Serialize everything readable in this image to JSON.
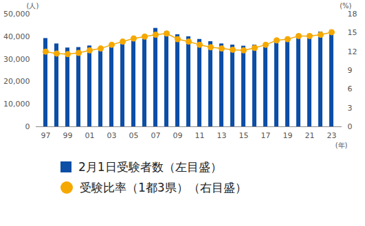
{
  "chart_data": {
    "type": "bar",
    "categories": [
      "97",
      null,
      "99",
      null,
      "01",
      null,
      "03",
      null,
      "05",
      null,
      "07",
      null,
      "09",
      null,
      "11",
      null,
      "13",
      null,
      "15",
      null,
      "17",
      null,
      "19",
      null,
      "21",
      null,
      "23"
    ],
    "xlabel": "(年)",
    "ylabel": "(人)",
    "y2label": "(%)",
    "ylim": [
      0,
      50000
    ],
    "yticks": [
      0,
      {
        "value": 10000,
        "label": "10,000"
      },
      {
        "value": 20000,
        "label": "20,000"
      },
      {
        "value": 30000,
        "label": "30,000"
      },
      {
        "value": 40000,
        "label": "40,000"
      },
      {
        "value": 50000,
        "label": "50,000"
      }
    ],
    "y2lim": [
      0,
      18
    ],
    "y2ticks": [
      0,
      3,
      6,
      9,
      12,
      15,
      18
    ],
    "legend": "bottom",
    "series": [
      {
        "name": "2月1日受験者数（左目盛）",
        "type": "bar",
        "color": "#0d4ea6",
        "values": [
          39200,
          36800,
          35000,
          35200,
          35900,
          35200,
          35500,
          37500,
          38500,
          40500,
          43700,
          42200,
          40900,
          40000,
          38800,
          37800,
          36800,
          36300,
          35800,
          36300,
          36300,
          37600,
          39600,
          41000,
          41100,
          42100,
          42800
        ]
      },
      {
        "name": "受験比率（1都3県）（右目盛）",
        "type": "line",
        "axis": "y2",
        "marker": "circle",
        "color": "#f5a800",
        "values": [
          12.0,
          11.7,
          11.6,
          11.8,
          12.2,
          12.5,
          13.1,
          13.6,
          14.1,
          14.4,
          14.7,
          14.9,
          14.0,
          13.6,
          13.1,
          12.7,
          12.5,
          12.3,
          12.2,
          12.6,
          13.1,
          13.8,
          14.0,
          14.5,
          14.5,
          14.7,
          15.1
        ]
      }
    ]
  }
}
